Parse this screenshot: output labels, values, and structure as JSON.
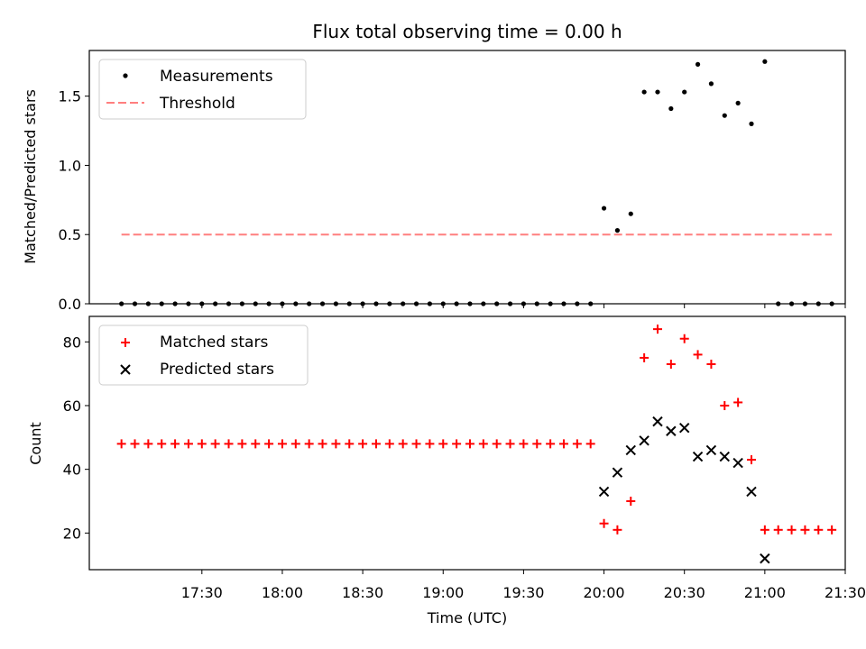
{
  "chart_data": [
    {
      "type": "scatter",
      "title": "Flux total observing time = 0.00 h",
      "xlabel": "",
      "ylabel": "Matched/Predicted stars",
      "xlim_minutes": [
        1008,
        1290
      ],
      "ylim": [
        0,
        1.83
      ],
      "yticks": [
        0.0,
        0.5,
        1.0,
        1.5
      ],
      "ytick_labels": [
        "0.0",
        "0.5",
        "1.0",
        "1.5"
      ],
      "legend_position": "upper-left",
      "series": [
        {
          "name": "Measurements",
          "marker": "dot",
          "color": "#000000",
          "x": [
            1020,
            1025,
            1030,
            1035,
            1040,
            1045,
            1050,
            1055,
            1060,
            1065,
            1070,
            1075,
            1080,
            1085,
            1090,
            1095,
            1100,
            1105,
            1110,
            1115,
            1120,
            1125,
            1130,
            1135,
            1140,
            1145,
            1150,
            1155,
            1160,
            1165,
            1170,
            1175,
            1180,
            1185,
            1190,
            1195,
            1200,
            1205,
            1210,
            1215,
            1220,
            1225,
            1230,
            1235,
            1240,
            1245,
            1250,
            1255,
            1260,
            1265,
            1270,
            1275,
            1280,
            1285
          ],
          "y": [
            0,
            0,
            0,
            0,
            0,
            0,
            0,
            0,
            0,
            0,
            0,
            0,
            0,
            0,
            0,
            0,
            0,
            0,
            0,
            0,
            0,
            0,
            0,
            0,
            0,
            0,
            0,
            0,
            0,
            0,
            0,
            0,
            0,
            0,
            0,
            0,
            0.69,
            0.53,
            0.65,
            1.53,
            1.53,
            1.41,
            1.53,
            1.73,
            1.59,
            1.36,
            1.45,
            1.3,
            1.75,
            0,
            0,
            0,
            0,
            0
          ]
        },
        {
          "name": "Threshold",
          "style": "dashed",
          "color": "#ff7f7f",
          "x": [
            1020,
            1285
          ],
          "y": [
            0.5,
            0.5
          ]
        }
      ]
    },
    {
      "type": "scatter",
      "title": "",
      "xlabel": "Time (UTC)",
      "ylabel": "Count",
      "xlim_minutes": [
        1008,
        1290
      ],
      "ylim": [
        8.5,
        88
      ],
      "yticks": [
        20,
        40,
        60,
        80
      ],
      "ytick_labels": [
        "20",
        "40",
        "60",
        "80"
      ],
      "xticks_minutes": [
        1050,
        1080,
        1110,
        1140,
        1170,
        1200,
        1230,
        1260,
        1290
      ],
      "xtick_labels": [
        "17:30",
        "18:00",
        "18:30",
        "19:00",
        "19:30",
        "20:00",
        "20:30",
        "21:00",
        "21:30"
      ],
      "legend_position": "upper-left",
      "series": [
        {
          "name": "Matched stars",
          "marker": "plus",
          "color": "#ff0000",
          "x": [
            1020,
            1025,
            1030,
            1035,
            1040,
            1045,
            1050,
            1055,
            1060,
            1065,
            1070,
            1075,
            1080,
            1085,
            1090,
            1095,
            1100,
            1105,
            1110,
            1115,
            1120,
            1125,
            1130,
            1135,
            1140,
            1145,
            1150,
            1155,
            1160,
            1165,
            1170,
            1175,
            1180,
            1185,
            1190,
            1195,
            1200,
            1205,
            1210,
            1215,
            1220,
            1225,
            1230,
            1235,
            1240,
            1245,
            1250,
            1255,
            1260,
            1265,
            1270,
            1275,
            1280,
            1285
          ],
          "y": [
            48,
            48,
            48,
            48,
            48,
            48,
            48,
            48,
            48,
            48,
            48,
            48,
            48,
            48,
            48,
            48,
            48,
            48,
            48,
            48,
            48,
            48,
            48,
            48,
            48,
            48,
            48,
            48,
            48,
            48,
            48,
            48,
            48,
            48,
            48,
            48,
            23,
            21,
            30,
            75,
            84,
            73,
            81,
            76,
            73,
            60,
            61,
            43,
            21,
            21,
            21,
            21,
            21,
            21
          ]
        },
        {
          "name": "Predicted stars",
          "marker": "x",
          "color": "#000000",
          "x": [
            1200,
            1205,
            1210,
            1215,
            1220,
            1225,
            1230,
            1235,
            1240,
            1245,
            1250,
            1255,
            1260
          ],
          "y": [
            33,
            39,
            46,
            49,
            55,
            52,
            53,
            44,
            46,
            44,
            42,
            33,
            12
          ]
        }
      ]
    }
  ]
}
